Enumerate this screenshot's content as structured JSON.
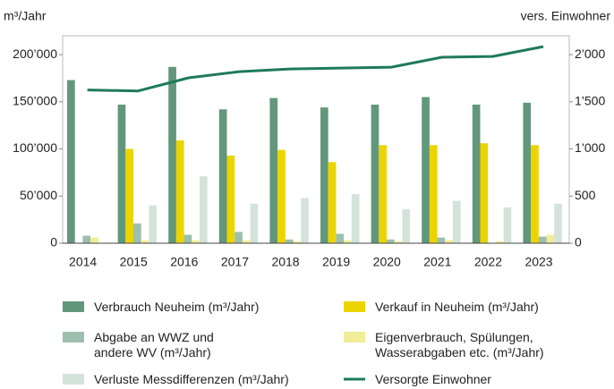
{
  "chart_data": {
    "type": "bar",
    "y_label": "m³/Jahr",
    "y2_label": "vers. Einwohner",
    "categories": [
      "2014",
      "2015",
      "2016",
      "2017",
      "2018",
      "2019",
      "2020",
      "2021",
      "2022",
      "2023"
    ],
    "ylim": [
      0,
      220000
    ],
    "yticks": [
      0,
      {
        "value": 50000,
        "label": "50’000"
      },
      {
        "value": 100000,
        "label": "100’000"
      },
      {
        "value": 150000,
        "label": "150’000"
      },
      {
        "value": 200000,
        "label": "200’000"
      }
    ],
    "y2lim": [
      0,
      2200
    ],
    "y2ticks": [
      0,
      500,
      {
        "value": 1000,
        "label": "1’000"
      },
      {
        "value": 1500,
        "label": "1’500"
      },
      {
        "value": 2000,
        "label": "2’000"
      }
    ],
    "grid": false,
    "series": [
      {
        "name": "Verbrauch Neuheim (m³/Jahr)",
        "color": "#63977c",
        "values": [
          173000,
          147000,
          187000,
          142000,
          154000,
          144000,
          147000,
          155000,
          147000,
          149000
        ]
      },
      {
        "name": "Verkauf in Neuheim (m³/Jahr)",
        "color": "#ecd400",
        "values": [
          0,
          100000,
          109000,
          93000,
          99000,
          86000,
          104000,
          104000,
          106000,
          104000
        ]
      },
      {
        "name": "Abgabe an WWZ und\nandere WV (m³/Jahr)",
        "color": "#9dbfad",
        "values": [
          8000,
          21000,
          9000,
          12000,
          4000,
          10000,
          4000,
          6000,
          0,
          7000
        ]
      },
      {
        "name": "Eigenverbrauch, Spülungen,\nWasserabgaben etc. (m³/Jahr)",
        "color": "#f1ec96",
        "values": [
          6000,
          3000,
          3000,
          3000,
          2000,
          3000,
          2000,
          3000,
          2000,
          9000
        ]
      },
      {
        "name": "Verluste Messdifferenzen (m³/Jahr)",
        "color": "#d4e3da",
        "values": [
          0,
          40000,
          71000,
          42000,
          48000,
          52000,
          36000,
          45000,
          38000,
          42000
        ]
      },
      {
        "name": "Versorgte Einwohner",
        "color": "#1f7a5c",
        "type": "line",
        "axis": "y2",
        "values": [
          1625,
          1615,
          1754,
          1820,
          1848,
          1858,
          1867,
          1972,
          1981,
          2085
        ]
      }
    ]
  }
}
